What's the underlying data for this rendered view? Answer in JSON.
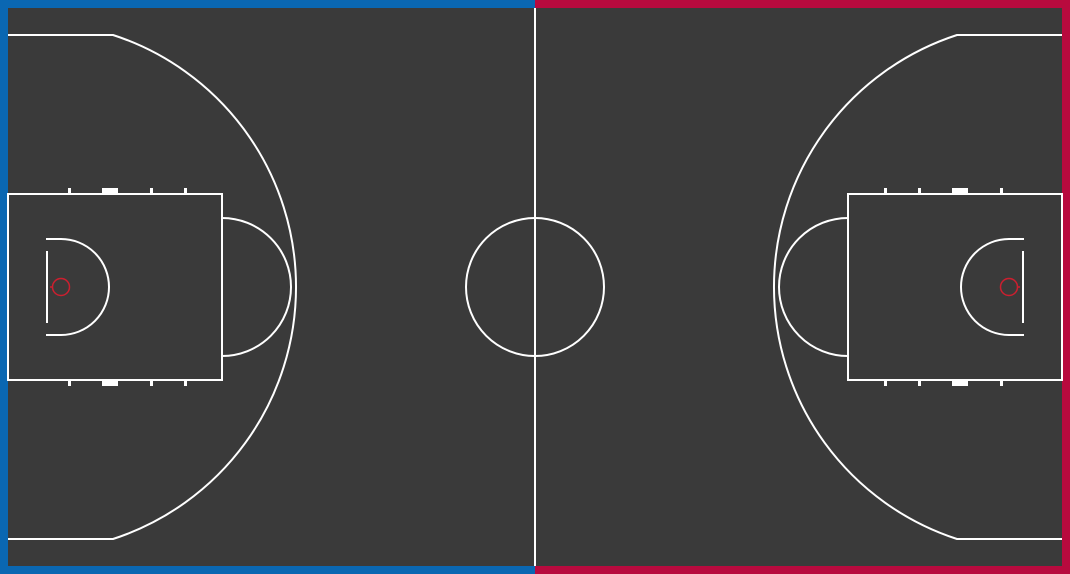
{
  "court": {
    "surface_color": "#3a3a3a",
    "line_color": "#ffffff",
    "rim_color": "#cc1f2f",
    "left_team_color": "#0a67b2",
    "right_team_color": "#b80a3e"
  }
}
